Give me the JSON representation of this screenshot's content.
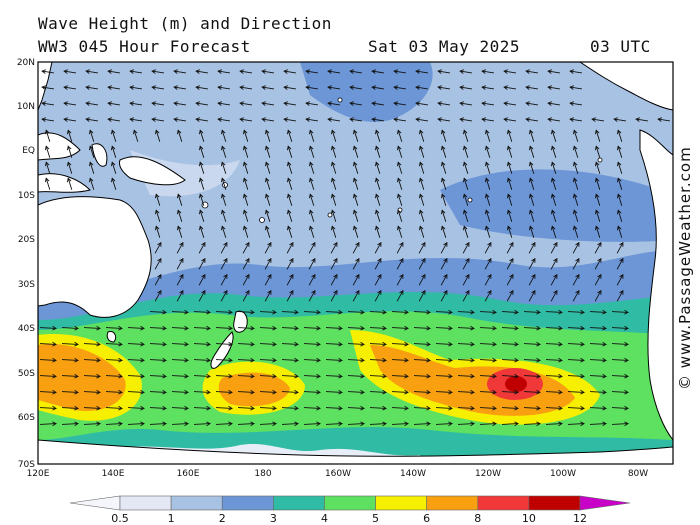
{
  "header": {
    "title": "Wave Height (m) and Direction",
    "model": "WW3 045 Hour Forecast",
    "date": "Sat 03 May 2025",
    "time": "03 UTC"
  },
  "credit": "© www.PassageWeather.com",
  "map": {
    "lat_labels": [
      "20N",
      "10N",
      "EQ",
      "10S",
      "20S",
      "30S",
      "40S",
      "50S",
      "60S",
      "70S"
    ],
    "lon_labels": [
      "120E",
      "140E",
      "160E",
      "180",
      "160W",
      "140W",
      "120W",
      "100W",
      "80W"
    ],
    "land_color": "#ffffff",
    "coast_color": "#000000"
  },
  "legend": {
    "ticks": [
      "0.5",
      "1",
      "2",
      "3",
      "4",
      "5",
      "6",
      "8",
      "10",
      "12"
    ],
    "colors": [
      "#e4e8f4",
      "#a8c2e4",
      "#6c96d6",
      "#30bca4",
      "#5ee060",
      "#f6f000",
      "#f8a010",
      "#f03838",
      "#c00000",
      "#c800c8"
    ],
    "units": "m"
  }
}
